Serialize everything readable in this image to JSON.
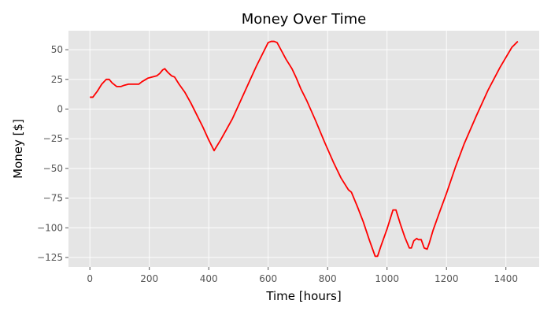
{
  "chart_data": {
    "type": "line",
    "title": "Money Over Time",
    "xlabel": "Time [hours]",
    "ylabel": "Money [$]",
    "xlim": [
      -72,
      1512
    ],
    "ylim": [
      -133,
      66
    ],
    "xticks": [
      0,
      200,
      400,
      600,
      800,
      1000,
      1200,
      1400
    ],
    "yticks": [
      50,
      25,
      0,
      -25,
      -50,
      -75,
      -100,
      -125
    ],
    "grid": true,
    "background": "#e5e5e5",
    "grid_color": "#ffffff",
    "series": [
      {
        "color": "#ff0000",
        "x": [
          0,
          10,
          25,
          40,
          55,
          65,
          75,
          90,
          105,
          115,
          130,
          150,
          165,
          175,
          195,
          210,
          225,
          235,
          245,
          252,
          262,
          275,
          285,
          300,
          320,
          340,
          360,
          380,
          400,
          418,
          440,
          460,
          480,
          500,
          520,
          540,
          560,
          580,
          600,
          610,
          620,
          630,
          645,
          660,
          670,
          680,
          695,
          710,
          730,
          760,
          790,
          820,
          845,
          870,
          880,
          900,
          920,
          940,
          960,
          968,
          980,
          1000,
          1020,
          1030,
          1045,
          1060,
          1075,
          1082,
          1090,
          1100,
          1105,
          1115,
          1125,
          1135,
          1142,
          1155,
          1175,
          1200,
          1230,
          1260,
          1300,
          1340,
          1380,
          1420,
          1440
        ],
        "y": [
          10,
          10,
          15,
          21,
          25,
          25,
          22,
          19,
          19,
          20,
          21,
          21,
          21,
          23,
          26,
          27,
          28,
          30,
          33,
          34,
          31,
          28,
          27,
          21,
          14,
          5,
          -5,
          -15,
          -26,
          -35,
          -26,
          -17,
          -8,
          3,
          14,
          25,
          36,
          46,
          56,
          57,
          57,
          56,
          49,
          42,
          38,
          34,
          26,
          17,
          7,
          -10,
          -28,
          -45,
          -58,
          -68,
          -70,
          -82,
          -95,
          -110,
          -124,
          -124,
          -115,
          -101,
          -85,
          -85,
          -97,
          -108,
          -117,
          -117,
          -111,
          -109,
          -110,
          -110,
          -117,
          -118,
          -113,
          -102,
          -88,
          -71,
          -49,
          -29,
          -6,
          16,
          35,
          52,
          57
        ]
      }
    ]
  }
}
